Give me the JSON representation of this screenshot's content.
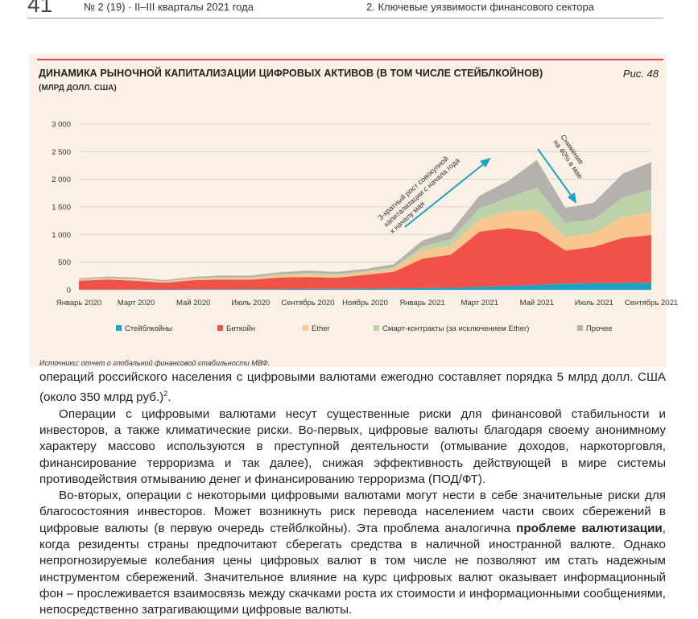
{
  "header": {
    "page_number": "41",
    "issue": "№ 2 (19) · II–III кварталы 2021 года",
    "section": "2. Ключевые уязвимости финансового сектора"
  },
  "figure": {
    "title": "ДИНАМИКА РЫНОЧНОЙ КАПИТАЛИЗАЦИИ ЦИФРОВЫХ АКТИВОВ (В ТОМ ЧИСЛЕ СТЕЙБЛКОЙНОВ)",
    "units": "(МЛРД ДОЛЛ. США)",
    "label": "Рис. 48",
    "source": "Источники: отчет о глобальной финансовой стабильности МВФ."
  },
  "chart_data": {
    "type": "area",
    "stacked": true,
    "ylim": [
      0,
      3000
    ],
    "yticks": [
      "3 000",
      "2 500",
      "2 000",
      "1 500",
      "1 000",
      "500",
      "0"
    ],
    "ytick_values": [
      3000,
      2500,
      2000,
      1500,
      1000,
      500,
      0
    ],
    "xticks": [
      "Январь 2020",
      "Март 2020",
      "Май 2020",
      "Июль 2020",
      "Сентябрь 2020",
      "Ноябрь 2020",
      "Январь 2021",
      "Март 2021",
      "Май 2021",
      "Июль 2021",
      "Сентябрь 2021"
    ],
    "x_months": [
      0,
      1,
      2,
      3,
      4,
      5,
      6,
      7,
      8,
      9,
      10,
      11,
      12,
      13,
      14,
      15,
      16,
      17,
      18,
      19,
      20
    ],
    "series": [
      {
        "name": "Стейблкойны",
        "color": "#1ba3c6",
        "values": [
          5,
          5,
          6,
          7,
          9,
          11,
          12,
          13,
          16,
          18,
          20,
          26,
          30,
          37,
          52,
          69,
          88,
          110,
          118,
          120,
          130
        ]
      },
      {
        "name": "Биткойн",
        "color": "#f0524a",
        "values": [
          160,
          180,
          155,
          120,
          165,
          175,
          170,
          210,
          215,
          200,
          250,
          300,
          530,
          600,
          1000,
          1050,
          960,
          600,
          660,
          820,
          860
        ]
      },
      {
        "name": "Ether",
        "color": "#f9c690",
        "values": [
          15,
          20,
          25,
          20,
          25,
          28,
          30,
          40,
          50,
          45,
          45,
          60,
          150,
          160,
          220,
          300,
          400,
          250,
          250,
          380,
          420
        ]
      },
      {
        "name": "Смарт-контракты (за исключением Ether)",
        "color": "#bcd3aa",
        "values": [
          10,
          10,
          10,
          8,
          10,
          12,
          15,
          20,
          25,
          22,
          20,
          25,
          70,
          120,
          200,
          250,
          400,
          250,
          250,
          350,
          400
        ]
      },
      {
        "name": "Прочее",
        "color": "#b5b1ad",
        "values": [
          20,
          25,
          25,
          20,
          25,
          30,
          30,
          35,
          40,
          40,
          40,
          50,
          110,
          140,
          230,
          300,
          500,
          270,
          300,
          430,
          500
        ]
      }
    ],
    "annotations": [
      {
        "text": "3-кратный рост совокупной капитализации с начала года к началу мая",
        "direction": "up"
      },
      {
        "text": "Снижение на 40% в мае",
        "direction": "down"
      }
    ],
    "legend_position": "bottom",
    "grid": true
  },
  "body": {
    "p1": "операций российского населения с цифровыми валютами ежегодно составляет порядка 5 млрд долл. США (около 350 млрд руб.)",
    "p1_sup": "2",
    "p1_end": ".",
    "p2": "Операции с цифровыми валютами несут существенные риски для финансовой стабильности и инвесторов, а также климатические риски. Во-первых, цифровые валюты благодаря своему анонимному характеру массово используются в преступной деятельности (отмывание доходов, наркоторговля, финансирование терроризма и так далее), снижая эффективность действующей в мире системы противодействия отмыванию денег и финансированию терроризма (ПОД/ФТ).",
    "p3_a": "Во-вторых, операции с некоторыми цифровыми валютами могут нести в себе значительные риски для благосостояния инвесторов. Может возникнуть риск перевода населением части своих сбережений в цифровые валюты (в первую очередь стейблкойны). Эта проблема аналогична ",
    "p3_bold": "проблеме валютизации",
    "p3_b": ", когда резиденты страны предпочитают сберегать средства в наличной иностранной валюте. Однако непрогнозируемые колебания цены цифровых валют в том числе не позволяют им стать надежным инструментом сбережений. Значительное влияние на курс цифровых валют оказывает информационный фон – прослеживается взаимосвязь между скачками роста их стоимости и информационными сообщениями, непосредственно затрагивающими цифровые валюты."
  }
}
